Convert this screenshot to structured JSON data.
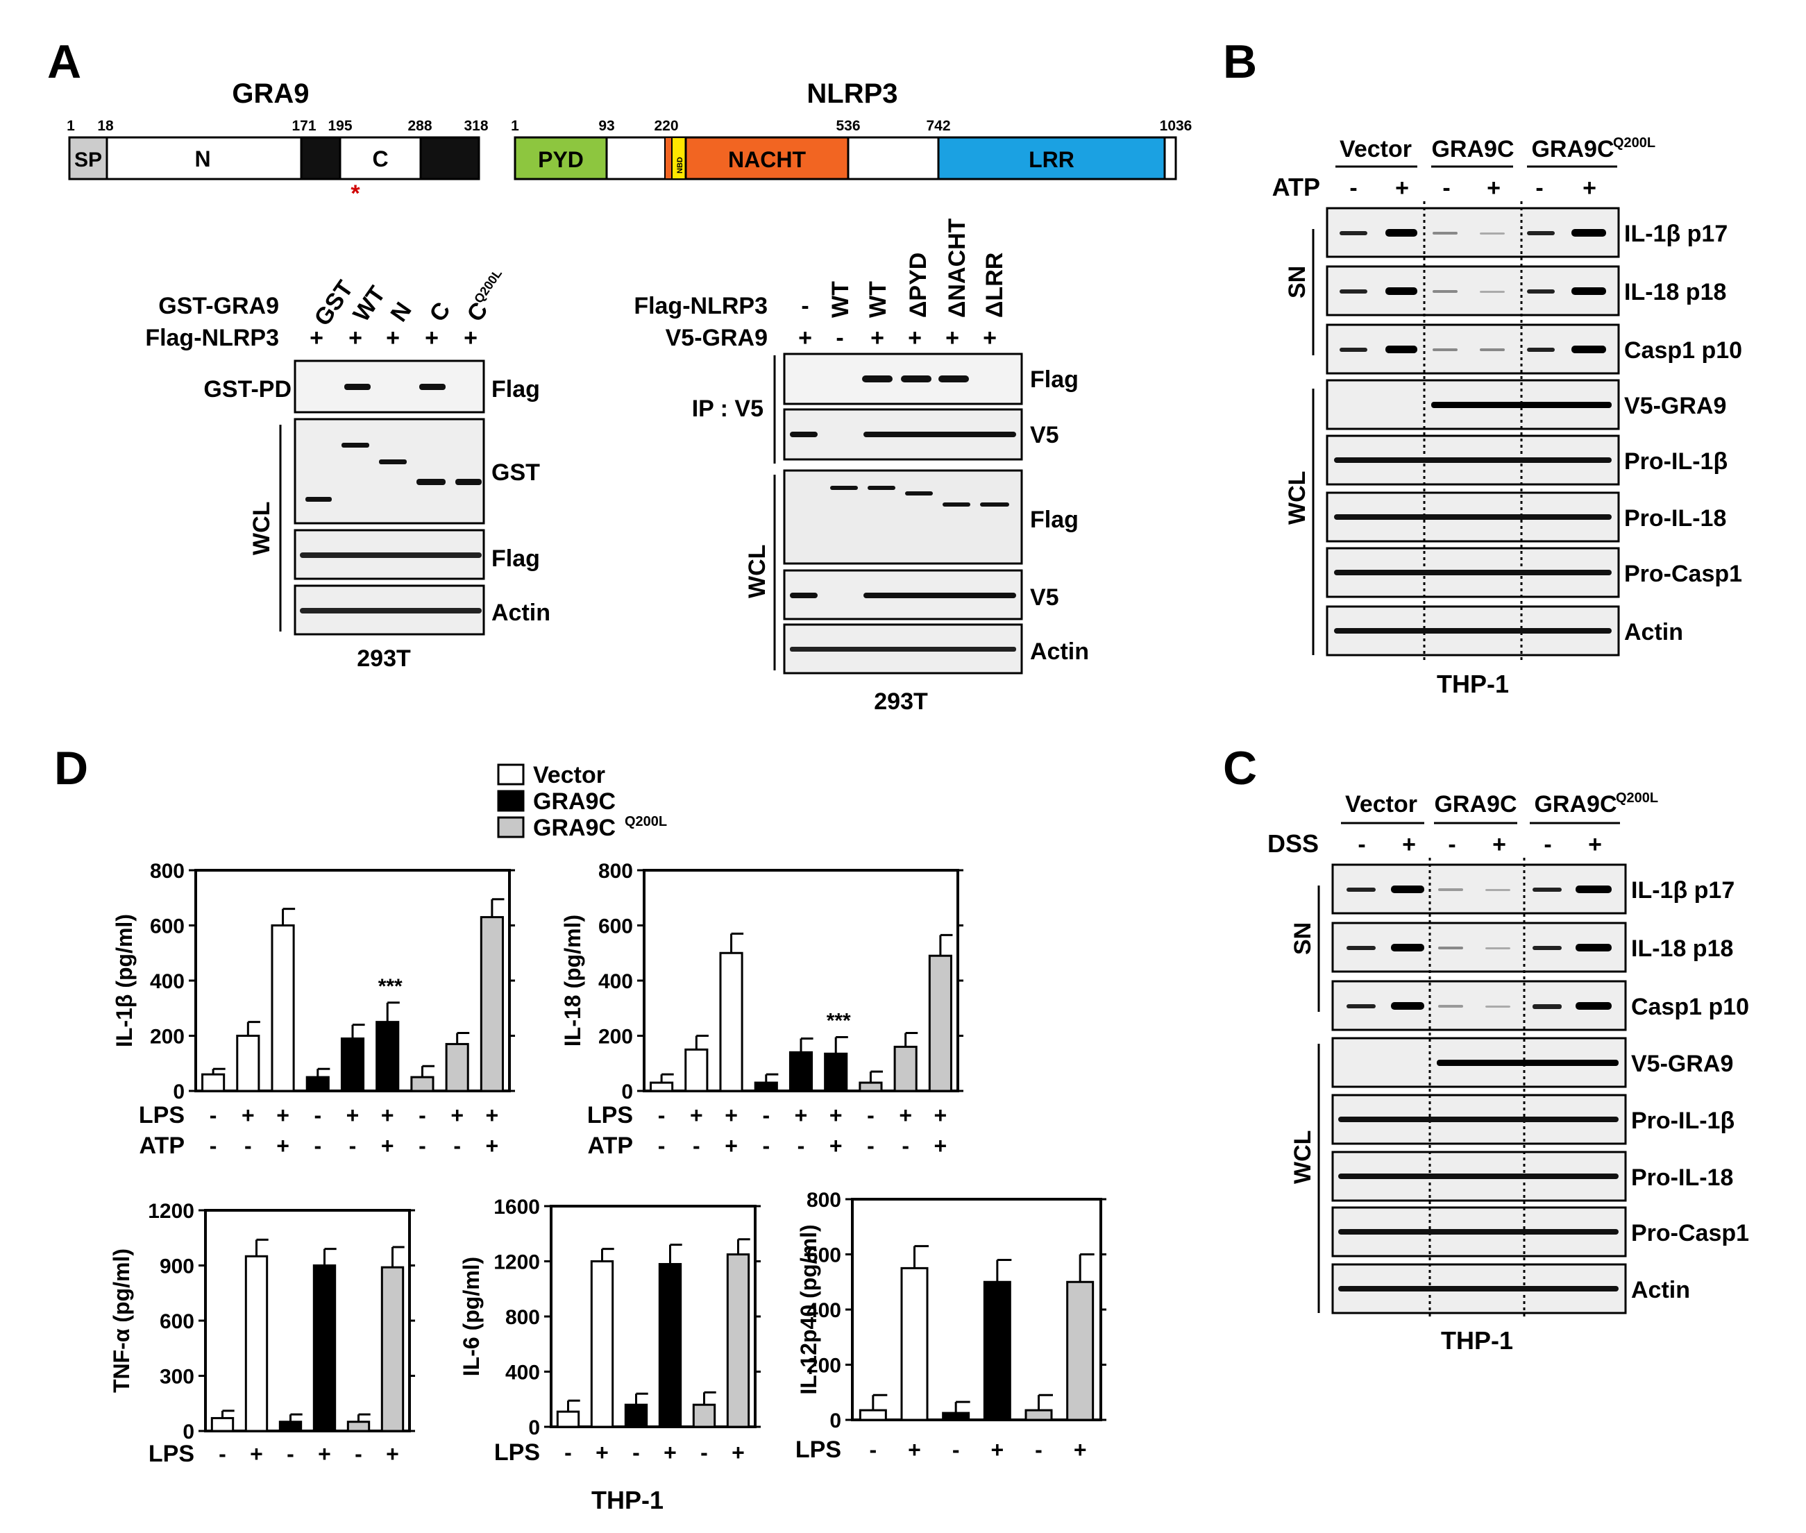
{
  "panels": {
    "A": "A",
    "B": "B",
    "C": "C",
    "D": "D"
  },
  "domains": {
    "gra9": {
      "title": "GRA9",
      "positions": [
        "1",
        "18",
        "171",
        "195",
        "288",
        "318"
      ],
      "labels": {
        "sp": "SP",
        "n": "N",
        "c": "C"
      },
      "marker": "*"
    },
    "nlrp3": {
      "title": "NLRP3",
      "positions": [
        "1",
        "93",
        "220",
        "536",
        "742",
        "1036"
      ],
      "labels": {
        "pyd": "PYD",
        "nbd": "NBD",
        "nacht": "NACHT",
        "lrr": "LRR"
      }
    },
    "colors": {
      "sp": "#cccccc",
      "pyd": "#8dc63f",
      "nacht": "#f26522",
      "nbd": "#ffe600",
      "lrr": "#1ba1e2",
      "black": "#111111",
      "white": "#ffffff",
      "marker": "#d00000"
    }
  },
  "blotA1": {
    "rows": [
      {
        "label": "GST-GRA9",
        "lanes": [
          "GST",
          "WT",
          "N",
          "C",
          "C"
        ],
        "superscript": "Q200L"
      },
      {
        "label": "Flag-NLRP3",
        "lanes": [
          "+",
          "+",
          "+",
          "+",
          "+"
        ]
      }
    ],
    "pd_label": "GST-PD",
    "wcl_label": "WCL",
    "bands": [
      "Flag",
      "GST",
      "Flag",
      "Actin"
    ],
    "cell": "293T"
  },
  "blotA2": {
    "rows": [
      {
        "label": "Flag-NLRP3",
        "lanes": [
          "-",
          "WT",
          "WT",
          "ΔPYD",
          "ΔNACHT",
          "ΔLRR"
        ]
      },
      {
        "label": "V5-GRA9",
        "lanes": [
          "+",
          "-",
          "+",
          "+",
          "+",
          "+"
        ]
      }
    ],
    "ip_label": "IP : V5",
    "wcl_label": "WCL",
    "bands": [
      "Flag",
      "V5",
      "Flag",
      "V5",
      "Actin"
    ],
    "cell": "293T"
  },
  "blotB": {
    "groups": [
      "Vector",
      "GRA9C",
      "GRA9C"
    ],
    "superscript": "Q200L",
    "treatment": "ATP",
    "lanes": [
      "-",
      "+",
      "-",
      "+",
      "-",
      "+"
    ],
    "sn_label": "SN",
    "wcl_label": "WCL",
    "bands": [
      "IL-1β p17",
      "IL-18 p18",
      "Casp1 p10",
      "V5-GRA9",
      "Pro-IL-1β",
      "Pro-IL-18",
      "Pro-Casp1",
      "Actin"
    ],
    "cell": "THP-1"
  },
  "blotC": {
    "groups": [
      "Vector",
      "GRA9C",
      "GRA9C"
    ],
    "superscript": "Q200L",
    "treatment": "DSS",
    "lanes": [
      "-",
      "+",
      "-",
      "+",
      "-",
      "+"
    ],
    "sn_label": "SN",
    "wcl_label": "WCL",
    "bands": [
      "IL-1β p17",
      "IL-18 p18",
      "Casp1 p10",
      "V5-GRA9",
      "Pro-IL-1β",
      "Pro-IL-18",
      "Pro-Casp1",
      "Actin"
    ],
    "cell": "THP-1"
  },
  "legend": [
    {
      "name": "Vector",
      "color": "#ffffff"
    },
    {
      "name": "GRA9C",
      "color": "#000000"
    },
    {
      "name": "GRA9C",
      "superscript": "Q200L",
      "color": "#c8c8c8"
    }
  ],
  "cell_D": "THP-1",
  "chart_data": [
    {
      "type": "bar",
      "ylabel": "IL-1β (pg/ml)",
      "ylim": [
        0,
        800
      ],
      "yticks": [
        0,
        200,
        400,
        600,
        800
      ],
      "values": [
        60,
        200,
        600,
        50,
        190,
        250,
        50,
        170,
        630
      ],
      "errors": [
        20,
        50,
        60,
        30,
        50,
        70,
        40,
        40,
        65
      ],
      "groups": [
        "Vector",
        "Vector",
        "Vector",
        "GRA9C",
        "GRA9C",
        "GRA9C",
        "GRA9CQ200L",
        "GRA9CQ200L",
        "GRA9CQ200L"
      ],
      "colors": [
        "#ffffff",
        "#ffffff",
        "#ffffff",
        "#000000",
        "#000000",
        "#000000",
        "#c8c8c8",
        "#c8c8c8",
        "#c8c8c8"
      ],
      "annotation": {
        "index": 5,
        "text": "***"
      },
      "conditions": [
        {
          "name": "LPS",
          "values": [
            "-",
            "+",
            "+",
            "-",
            "+",
            "+",
            "-",
            "+",
            "+"
          ]
        },
        {
          "name": "ATP",
          "values": [
            "-",
            "-",
            "+",
            "-",
            "-",
            "+",
            "-",
            "-",
            "+"
          ]
        }
      ]
    },
    {
      "type": "bar",
      "ylabel": "IL-18 (pg/ml)",
      "ylim": [
        0,
        800
      ],
      "yticks": [
        0,
        200,
        400,
        600,
        800
      ],
      "values": [
        30,
        150,
        500,
        30,
        140,
        135,
        30,
        160,
        490
      ],
      "errors": [
        30,
        50,
        70,
        30,
        50,
        60,
        40,
        50,
        75
      ],
      "groups": [
        "Vector",
        "Vector",
        "Vector",
        "GRA9C",
        "GRA9C",
        "GRA9C",
        "GRA9CQ200L",
        "GRA9CQ200L",
        "GRA9CQ200L"
      ],
      "colors": [
        "#ffffff",
        "#ffffff",
        "#ffffff",
        "#000000",
        "#000000",
        "#000000",
        "#c8c8c8",
        "#c8c8c8",
        "#c8c8c8"
      ],
      "annotation": {
        "index": 5,
        "text": "***"
      },
      "conditions": [
        {
          "name": "LPS",
          "values": [
            "-",
            "+",
            "+",
            "-",
            "+",
            "+",
            "-",
            "+",
            "+"
          ]
        },
        {
          "name": "ATP",
          "values": [
            "-",
            "-",
            "+",
            "-",
            "-",
            "+",
            "-",
            "-",
            "+"
          ]
        }
      ]
    },
    {
      "type": "bar",
      "ylabel": "TNF-α (pg/ml)",
      "ylim": [
        0,
        1200
      ],
      "yticks": [
        0,
        300,
        600,
        900,
        1200
      ],
      "values": [
        70,
        950,
        50,
        900,
        50,
        890
      ],
      "errors": [
        40,
        90,
        40,
        90,
        40,
        110
      ],
      "groups": [
        "Vector",
        "Vector",
        "GRA9C",
        "GRA9C",
        "GRA9CQ200L",
        "GRA9CQ200L"
      ],
      "colors": [
        "#ffffff",
        "#ffffff",
        "#000000",
        "#000000",
        "#c8c8c8",
        "#c8c8c8"
      ],
      "conditions": [
        {
          "name": "LPS",
          "values": [
            "-",
            "+",
            "-",
            "+",
            "-",
            "+"
          ]
        }
      ]
    },
    {
      "type": "bar",
      "ylabel": "IL-6 (pg/ml)",
      "ylim": [
        0,
        1600
      ],
      "yticks": [
        0,
        400,
        800,
        1200,
        1600
      ],
      "values": [
        110,
        1200,
        160,
        1180,
        160,
        1250
      ],
      "errors": [
        80,
        90,
        80,
        140,
        90,
        110
      ],
      "groups": [
        "Vector",
        "Vector",
        "GRA9C",
        "GRA9C",
        "GRA9CQ200L",
        "GRA9CQ200L"
      ],
      "colors": [
        "#ffffff",
        "#ffffff",
        "#000000",
        "#000000",
        "#c8c8c8",
        "#c8c8c8"
      ],
      "conditions": [
        {
          "name": "LPS",
          "values": [
            "-",
            "+",
            "-",
            "+",
            "-",
            "+"
          ]
        }
      ]
    },
    {
      "type": "bar",
      "ylabel": "IL-12p40 (pg/ml)",
      "ylim": [
        0,
        800
      ],
      "yticks": [
        0,
        200,
        400,
        600,
        800
      ],
      "values": [
        35,
        550,
        25,
        500,
        35,
        500
      ],
      "errors": [
        55,
        80,
        40,
        80,
        55,
        100
      ],
      "groups": [
        "Vector",
        "Vector",
        "GRA9C",
        "GRA9C",
        "GRA9CQ200L",
        "GRA9CQ200L"
      ],
      "colors": [
        "#ffffff",
        "#ffffff",
        "#000000",
        "#000000",
        "#c8c8c8",
        "#c8c8c8"
      ],
      "conditions": [
        {
          "name": "LPS",
          "values": [
            "-",
            "+",
            "-",
            "+",
            "-",
            "+"
          ]
        }
      ]
    }
  ]
}
